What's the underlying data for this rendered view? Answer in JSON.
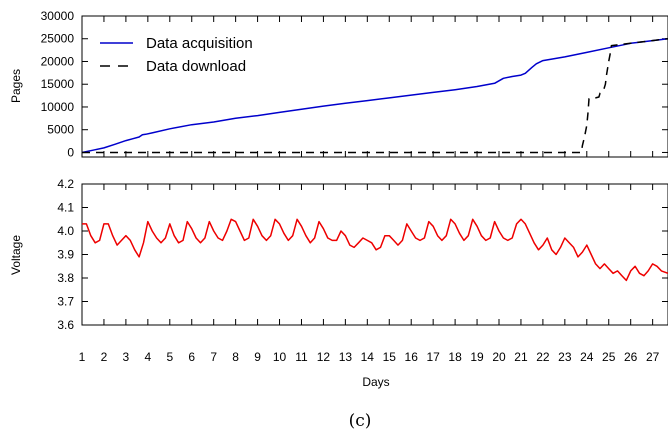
{
  "caption": "(c)",
  "chart_data": [
    {
      "type": "line",
      "title": "",
      "xlabel": "",
      "ylabel": "Pages",
      "xlim": [
        1,
        27.7
      ],
      "ylim": [
        -1000,
        30000
      ],
      "yticks": [
        0,
        5000,
        10000,
        15000,
        20000,
        25000,
        30000
      ],
      "grid": false,
      "legend": {
        "position": "top-left",
        "entries": [
          "Data acquisition",
          "Data download"
        ]
      },
      "series": [
        {
          "name": "Data acquisition",
          "color": "#0000cc",
          "style": "solid",
          "x": [
            1,
            1.5,
            2,
            2.5,
            3,
            3.3,
            3.6,
            3.75,
            3.9,
            4.2,
            5,
            6,
            7,
            8,
            9,
            10,
            11,
            12,
            13,
            14,
            15,
            16,
            17,
            18,
            19,
            19.8,
            20.2,
            20.6,
            21,
            21.2,
            21.5,
            21.7,
            22,
            23,
            24,
            25,
            26,
            27,
            27.7
          ],
          "y": [
            0,
            500,
            1000,
            1800,
            2600,
            3000,
            3400,
            3900,
            4000,
            4300,
            5200,
            6100,
            6700,
            7500,
            8100,
            8800,
            9500,
            10200,
            10800,
            11400,
            12000,
            12600,
            13200,
            13800,
            14500,
            15200,
            16300,
            16700,
            17000,
            17400,
            18700,
            19500,
            20200,
            21000,
            22000,
            23000,
            24000,
            24600,
            25000
          ]
        },
        {
          "name": "Data download",
          "color": "#000000",
          "style": "dashed",
          "x": [
            1,
            23.75,
            23.8,
            23.9,
            24,
            24.05,
            24.1,
            24.4,
            24.55,
            24.6,
            24.75,
            24.85,
            24.9,
            25,
            25.1,
            25.12,
            27.7
          ],
          "y": [
            0,
            0,
            1500,
            3500,
            6000,
            8500,
            11800,
            12000,
            12200,
            13000,
            13500,
            15000,
            17000,
            20000,
            22500,
            23500,
            25000
          ]
        }
      ]
    },
    {
      "type": "line",
      "title": "",
      "xlabel": "Days",
      "ylabel": "Voltage",
      "xlim": [
        1,
        27.7
      ],
      "ylim": [
        3.6,
        4.2
      ],
      "xticks": [
        1,
        2,
        3,
        4,
        5,
        6,
        7,
        8,
        9,
        10,
        11,
        12,
        13,
        14,
        15,
        16,
        17,
        18,
        19,
        20,
        21,
        22,
        23,
        24,
        25,
        26,
        27
      ],
      "yticks": [
        3.6,
        3.7,
        3.8,
        3.9,
        4.0,
        4.1,
        4.2
      ],
      "grid": false,
      "series": [
        {
          "name": "",
          "color": "#ee0000",
          "style": "solid",
          "x": [
            1,
            1.2,
            1.4,
            1.6,
            1.8,
            2.0,
            2.2,
            2.4,
            2.6,
            2.8,
            3.0,
            3.2,
            3.4,
            3.6,
            3.8,
            4.0,
            4.2,
            4.4,
            4.6,
            4.8,
            5.0,
            5.2,
            5.4,
            5.6,
            5.8,
            6.0,
            6.2,
            6.4,
            6.6,
            6.8,
            7.0,
            7.2,
            7.4,
            7.6,
            7.8,
            8.0,
            8.2,
            8.4,
            8.6,
            8.8,
            9.0,
            9.2,
            9.4,
            9.6,
            9.8,
            10.0,
            10.2,
            10.4,
            10.6,
            10.8,
            11.0,
            11.2,
            11.4,
            11.6,
            11.8,
            12.0,
            12.2,
            12.4,
            12.6,
            12.8,
            13.0,
            13.2,
            13.4,
            13.6,
            13.8,
            14.0,
            14.2,
            14.4,
            14.6,
            14.8,
            15.0,
            15.2,
            15.4,
            15.6,
            15.8,
            16.0,
            16.2,
            16.4,
            16.6,
            16.8,
            17.0,
            17.2,
            17.4,
            17.6,
            17.8,
            18.0,
            18.2,
            18.4,
            18.6,
            18.8,
            19.0,
            19.2,
            19.4,
            19.6,
            19.8,
            20.0,
            20.2,
            20.4,
            20.6,
            20.8,
            21.0,
            21.2,
            21.4,
            21.6,
            21.8,
            22.0,
            22.2,
            22.4,
            22.6,
            22.8,
            23.0,
            23.2,
            23.4,
            23.6,
            23.8,
            24.0,
            24.2,
            24.4,
            24.6,
            24.8,
            25.0,
            25.2,
            25.4,
            25.6,
            25.8,
            26.0,
            26.2,
            26.4,
            26.6,
            26.8,
            27.0,
            27.2,
            27.4,
            27.7
          ],
          "y": [
            4.03,
            4.03,
            3.98,
            3.95,
            3.96,
            4.03,
            4.03,
            3.98,
            3.94,
            3.96,
            3.98,
            3.96,
            3.92,
            3.89,
            3.95,
            4.04,
            4.0,
            3.97,
            3.95,
            3.97,
            4.03,
            3.98,
            3.95,
            3.96,
            4.04,
            4.01,
            3.97,
            3.95,
            3.97,
            4.04,
            4.0,
            3.97,
            3.96,
            4.0,
            4.05,
            4.04,
            4.0,
            3.96,
            3.97,
            4.05,
            4.02,
            3.98,
            3.96,
            3.98,
            4.05,
            4.03,
            3.99,
            3.96,
            3.98,
            4.05,
            4.02,
            3.98,
            3.95,
            3.97,
            4.04,
            4.01,
            3.97,
            3.96,
            3.96,
            4.0,
            3.98,
            3.94,
            3.93,
            3.95,
            3.97,
            3.96,
            3.95,
            3.92,
            3.93,
            3.98,
            3.98,
            3.96,
            3.94,
            3.96,
            4.03,
            4.0,
            3.97,
            3.96,
            3.97,
            4.04,
            4.02,
            3.98,
            3.96,
            3.98,
            4.05,
            4.03,
            3.99,
            3.96,
            3.98,
            4.05,
            4.02,
            3.98,
            3.96,
            3.97,
            4.04,
            4.0,
            3.97,
            3.96,
            3.97,
            4.03,
            4.05,
            4.03,
            3.99,
            3.95,
            3.92,
            3.94,
            3.97,
            3.92,
            3.9,
            3.93,
            3.97,
            3.95,
            3.93,
            3.89,
            3.91,
            3.94,
            3.9,
            3.86,
            3.84,
            3.86,
            3.84,
            3.82,
            3.83,
            3.81,
            3.79,
            3.83,
            3.85,
            3.82,
            3.81,
            3.83,
            3.86,
            3.85,
            3.83,
            3.82
          ]
        }
      ]
    }
  ]
}
